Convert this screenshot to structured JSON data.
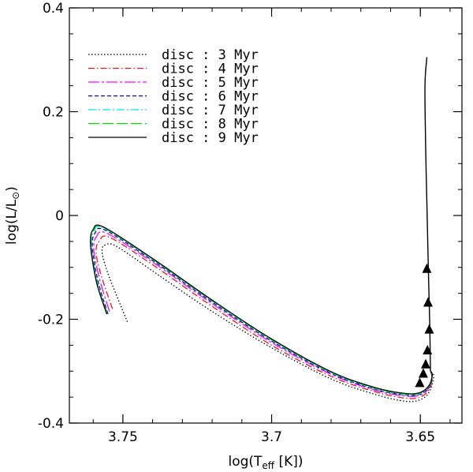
{
  "chart_data": {
    "type": "line",
    "xlabel": "log(T",
    "xlabel_sub": "eff",
    "xlabel_suffix": " [K])",
    "ylabel": "log(L/L",
    "ylabel_sub": "⊙",
    "ylabel_suffix": ")",
    "xlim": [
      3.768,
      3.636
    ],
    "ylim": [
      -0.4,
      0.4
    ],
    "x_ticks": [
      3.75,
      3.7,
      3.65
    ],
    "x_tick_labels": [
      "3.75",
      "3.7",
      "3.65"
    ],
    "y_ticks": [
      0.4,
      0.2,
      0,
      -0.2,
      -0.4
    ],
    "y_tick_labels": [
      "0.4",
      "0.2",
      "0",
      "-0.2",
      "-0.4"
    ],
    "x_minor_step": 0.01,
    "y_minor_step": 0.05,
    "legend_position": "top-left",
    "common_track": {
      "x": [
        3.6466,
        3.6468,
        3.6471,
        3.6474,
        3.6477,
        3.6481,
        3.6484,
        3.6484,
        3.6478
      ],
      "y": [
        -0.3,
        -0.22,
        -0.15,
        -0.08,
        0.0,
        0.1,
        0.2,
        0.26,
        0.305
      ]
    },
    "series": [
      {
        "name": "disc : 3 Myr",
        "color": "#000000",
        "dash": "1.5,2.5",
        "x": [
          3.7485,
          3.751,
          3.7545,
          3.7565,
          3.757,
          3.756,
          3.752,
          3.738,
          3.72,
          3.7,
          3.68,
          3.665,
          3.655,
          3.65,
          3.647,
          3.6455,
          3.6466
        ],
        "y": [
          -0.205,
          -0.17,
          -0.12,
          -0.085,
          -0.066,
          -0.057,
          -0.06,
          -0.115,
          -0.185,
          -0.255,
          -0.315,
          -0.345,
          -0.358,
          -0.355,
          -0.34,
          -0.31,
          -0.3
        ]
      },
      {
        "name": "disc : 4 Myr",
        "color": "#e41a1c",
        "dash": "8,3,1.5,3",
        "x": [
          3.7535,
          3.7565,
          3.7585,
          3.759,
          3.758,
          3.7545,
          3.74,
          3.72,
          3.7,
          3.68,
          3.665,
          3.655,
          3.65,
          3.647,
          3.646,
          3.6466
        ],
        "y": [
          -0.18,
          -0.13,
          -0.09,
          -0.065,
          -0.05,
          -0.042,
          -0.095,
          -0.175,
          -0.25,
          -0.31,
          -0.34,
          -0.352,
          -0.35,
          -0.335,
          -0.315,
          -0.3
        ]
      },
      {
        "name": "disc : 5 Myr",
        "color": "#ff00ff",
        "dash": "14,3,3,3",
        "x": [
          3.7545,
          3.7575,
          3.7593,
          3.7598,
          3.759,
          3.7555,
          3.74,
          3.72,
          3.7,
          3.68,
          3.665,
          3.655,
          3.65,
          3.647,
          3.646,
          3.6466
        ],
        "y": [
          -0.185,
          -0.13,
          -0.085,
          -0.06,
          -0.042,
          -0.034,
          -0.09,
          -0.17,
          -0.245,
          -0.306,
          -0.337,
          -0.348,
          -0.346,
          -0.332,
          -0.312,
          -0.3
        ]
      },
      {
        "name": "disc : 6 Myr",
        "color": "#00008b",
        "dash": "5,3",
        "x": [
          3.755,
          3.758,
          3.7598,
          3.7603,
          3.7595,
          3.756,
          3.74,
          3.72,
          3.7,
          3.68,
          3.665,
          3.655,
          3.65,
          3.647,
          3.646,
          3.6466
        ],
        "y": [
          -0.19,
          -0.135,
          -0.085,
          -0.055,
          -0.035,
          -0.028,
          -0.087,
          -0.167,
          -0.242,
          -0.304,
          -0.335,
          -0.346,
          -0.344,
          -0.33,
          -0.31,
          -0.3
        ]
      },
      {
        "name": "disc : 7 Myr",
        "color": "#00e5ee",
        "dash": "10,3,2,3",
        "x": [
          3.7552,
          3.7583,
          3.7601,
          3.7606,
          3.7598,
          3.7563,
          3.74,
          3.72,
          3.7,
          3.68,
          3.665,
          3.655,
          3.65,
          3.647,
          3.646,
          3.6466
        ],
        "y": [
          -0.19,
          -0.135,
          -0.083,
          -0.052,
          -0.031,
          -0.025,
          -0.085,
          -0.165,
          -0.24,
          -0.303,
          -0.334,
          -0.345,
          -0.343,
          -0.329,
          -0.309,
          -0.3
        ]
      },
      {
        "name": "disc : 8 Myr",
        "color": "#00dd00",
        "dash": "14,4",
        "x": [
          3.7553,
          3.7585,
          3.7603,
          3.7608,
          3.76,
          3.7565,
          3.74,
          3.72,
          3.7,
          3.68,
          3.665,
          3.655,
          3.65,
          3.647,
          3.646,
          3.6466
        ],
        "y": [
          -0.19,
          -0.135,
          -0.082,
          -0.05,
          -0.029,
          -0.023,
          -0.084,
          -0.164,
          -0.239,
          -0.302,
          -0.333,
          -0.344,
          -0.342,
          -0.328,
          -0.308,
          -0.3
        ]
      },
      {
        "name": "disc : 9 Myr",
        "color": "#000000",
        "dash": "",
        "x": [
          3.7554,
          3.7586,
          3.7604,
          3.7609,
          3.7601,
          3.7566,
          3.74,
          3.72,
          3.7,
          3.68,
          3.665,
          3.655,
          3.65,
          3.647,
          3.646,
          3.6466
        ],
        "y": [
          -0.19,
          -0.135,
          -0.081,
          -0.049,
          -0.028,
          -0.022,
          -0.083,
          -0.163,
          -0.238,
          -0.301,
          -0.332,
          -0.343,
          -0.341,
          -0.327,
          -0.307,
          -0.3
        ]
      }
    ],
    "markers": {
      "shape": "triangle",
      "color": "#000000",
      "points": [
        {
          "x": 3.6502,
          "y": -0.323
        },
        {
          "x": 3.649,
          "y": -0.305
        },
        {
          "x": 3.6482,
          "y": -0.287
        },
        {
          "x": 3.6476,
          "y": -0.26
        },
        {
          "x": 3.647,
          "y": -0.22
        },
        {
          "x": 3.6474,
          "y": -0.168
        },
        {
          "x": 3.6478,
          "y": -0.103
        }
      ]
    }
  }
}
